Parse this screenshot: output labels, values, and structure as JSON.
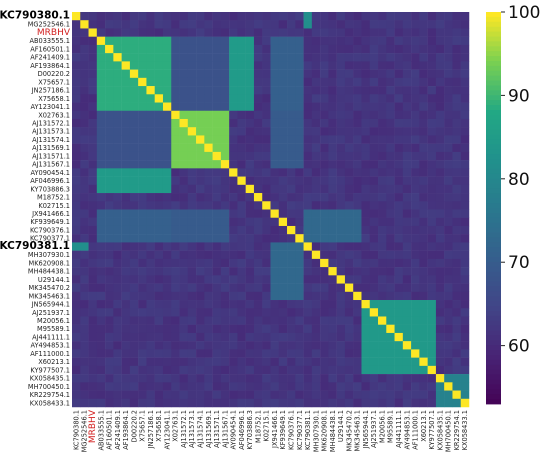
{
  "chart_data": {
    "type": "heatmap",
    "title": "",
    "xlabel": "",
    "ylabel": "",
    "labels": [
      "KC790380.1",
      "MG252546.1",
      "MRBHV",
      "AB033555.1",
      "AF160501.1",
      "AF241409.1",
      "AF193864.1",
      "D00220.2",
      "X75657.1",
      "JN257186.1",
      "X75658.1",
      "AY123041.1",
      "X02763.1",
      "AJ131572.1",
      "AJ131573.1",
      "AJ131574.1",
      "AJ131569.1",
      "AJ131571.1",
      "AJ131567.1",
      "AY090454.1",
      "AF046996.1",
      "KY703886.3",
      "M18752.1",
      "K02715.1",
      "JX941466.1",
      "KF939649.1",
      "KC790376.1",
      "KC790377.1",
      "KC790381.1",
      "MH307930.1",
      "MK620908.1",
      "MH484438.1",
      "U29144.1",
      "MK345470.2",
      "MK345463.1",
      "JN565944.1",
      "AJ251937.1",
      "M20056.1",
      "M95589.1",
      "AJ441111.1",
      "AY494853.1",
      "AF111000.1",
      "X60213.1",
      "KY977507.1",
      "KX058435.1",
      "MH700450.1",
      "KR229754.1",
      "KX058433.1"
    ],
    "label_styles": {
      "KC790380.1": "bold",
      "KC790381.1": "bold",
      "MRBHV": "red"
    },
    "groups": [
      {
        "start": 3,
        "end": 11,
        "within": 89
      },
      {
        "start": 12,
        "end": 18,
        "within": 94
      },
      {
        "start": 35,
        "end": 43,
        "within": 84.5
      },
      {
        "start": 44,
        "end": 47,
        "within": 79
      }
    ],
    "cross_group_values": [
      {
        "a": [
          3,
          11
        ],
        "b": [
          19,
          21
        ],
        "value": 85
      },
      {
        "a": [
          0,
          1
        ],
        "b": [
          28,
          28
        ],
        "value": 82
      },
      {
        "a": [
          24,
          27
        ],
        "b": [
          28,
          34
        ],
        "value": 73
      },
      {
        "a": [
          24,
          27
        ],
        "b": [
          12,
          18
        ],
        "value": 70
      },
      {
        "a": [
          24,
          27
        ],
        "b": [
          3,
          11
        ],
        "value": 71
      },
      {
        "a": [
          3,
          11
        ],
        "b": [
          12,
          18
        ],
        "value": 68
      }
    ],
    "diagonal_value": 100,
    "background_value": 62,
    "colorbar": {
      "min": 53,
      "max": 100,
      "ticks": [
        60,
        70,
        80,
        90,
        100
      ],
      "colormap": "viridis"
    }
  }
}
